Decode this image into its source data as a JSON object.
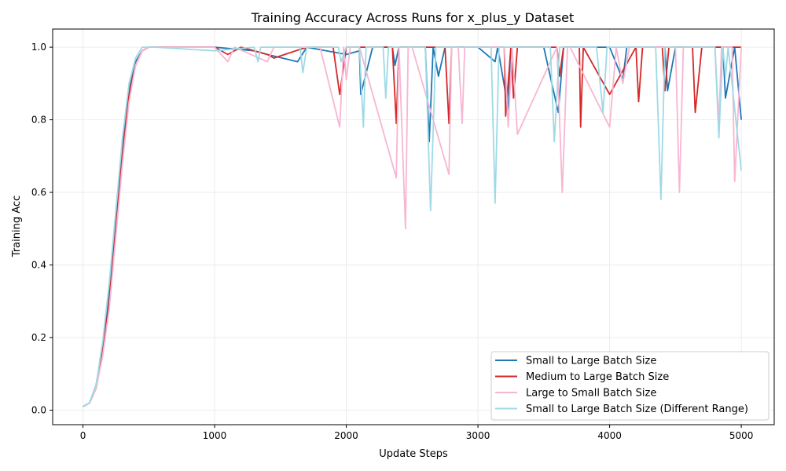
{
  "chart_data": {
    "type": "line",
    "title": "Training Accuracy Across Runs for x_plus_y Dataset",
    "xlabel": "Update Steps",
    "ylabel": "Training Acc",
    "xlim": [
      -230,
      5250
    ],
    "ylim": [
      -0.04,
      1.05
    ],
    "xticks": [
      0,
      1000,
      2000,
      3000,
      4000,
      5000
    ],
    "yticks": [
      0.0,
      0.2,
      0.4,
      0.6,
      0.8,
      1.0
    ],
    "grid": true,
    "legend_position": "bottom-right",
    "series": [
      {
        "name": "Small to Large Batch Size",
        "color": "#1f77b4",
        "x": [
          0,
          50,
          100,
          150,
          200,
          250,
          300,
          350,
          400,
          450,
          500,
          550,
          1000,
          1300,
          1400,
          1630,
          1700,
          2000,
          2100,
          2110,
          2200,
          2350,
          2370,
          2400,
          2600,
          2630,
          2660,
          2700,
          2750,
          3000,
          3130,
          3150,
          3230,
          3250,
          3500,
          3610,
          3650,
          3700,
          4000,
          4100,
          4130,
          4200,
          4420,
          4440,
          4500,
          4860,
          4880,
          4950,
          5000
        ],
        "y": [
          0.01,
          0.02,
          0.07,
          0.18,
          0.33,
          0.52,
          0.72,
          0.88,
          0.96,
          0.99,
          1.0,
          1.0,
          1.0,
          0.99,
          0.98,
          0.96,
          1.0,
          0.98,
          0.99,
          0.87,
          1.0,
          1.0,
          0.95,
          1.0,
          1.0,
          0.74,
          1.0,
          0.92,
          1.0,
          1.0,
          0.96,
          1.0,
          0.83,
          1.0,
          1.0,
          0.82,
          1.0,
          1.0,
          1.0,
          0.91,
          1.0,
          1.0,
          1.0,
          0.88,
          1.0,
          1.0,
          0.86,
          1.0,
          0.8
        ]
      },
      {
        "name": "Medium to Large Batch Size",
        "color": "#d62728",
        "x": [
          0,
          50,
          100,
          150,
          200,
          250,
          300,
          350,
          400,
          450,
          500,
          550,
          1000,
          1100,
          1200,
          1400,
          1450,
          1700,
          1900,
          1950,
          2000,
          2350,
          2380,
          2400,
          2750,
          2780,
          2800,
          3200,
          3210,
          3250,
          3270,
          3300,
          3600,
          3620,
          3650,
          3770,
          3780,
          3800,
          4000,
          4200,
          4220,
          4250,
          4400,
          4420,
          4450,
          4630,
          4650,
          4700,
          5000
        ],
        "y": [
          0.01,
          0.02,
          0.06,
          0.16,
          0.3,
          0.5,
          0.7,
          0.87,
          0.95,
          0.99,
          1.0,
          1.0,
          1.0,
          0.98,
          1.0,
          0.98,
          0.97,
          1.0,
          1.0,
          0.87,
          1.0,
          1.0,
          0.79,
          1.0,
          1.0,
          0.79,
          1.0,
          1.0,
          0.81,
          1.0,
          0.86,
          1.0,
          1.0,
          0.92,
          1.0,
          1.0,
          0.78,
          1.0,
          0.87,
          1.0,
          0.85,
          1.0,
          1.0,
          0.88,
          1.0,
          1.0,
          0.82,
          1.0,
          1.0
        ]
      },
      {
        "name": "Large to Small Batch Size",
        "color": "#f7b6d2",
        "x": [
          0,
          50,
          100,
          150,
          200,
          250,
          300,
          350,
          400,
          450,
          500,
          550,
          1000,
          1100,
          1150,
          1400,
          1450,
          1800,
          1950,
          1980,
          2000,
          2030,
          2100,
          2380,
          2400,
          2450,
          2470,
          2500,
          2780,
          2800,
          2850,
          2880,
          2900,
          3200,
          3230,
          3260,
          3300,
          3600,
          3640,
          3680,
          3700,
          4000,
          4050,
          4100,
          4150,
          4500,
          4530,
          4560,
          4800,
          4830,
          4850,
          4930,
          4950,
          5000
        ],
        "y": [
          0.01,
          0.02,
          0.06,
          0.15,
          0.28,
          0.48,
          0.68,
          0.85,
          0.95,
          0.99,
          1.0,
          1.0,
          1.0,
          0.96,
          1.0,
          0.96,
          1.0,
          1.0,
          0.78,
          1.0,
          0.91,
          1.0,
          1.0,
          0.64,
          1.0,
          0.5,
          1.0,
          1.0,
          0.65,
          1.0,
          1.0,
          0.79,
          1.0,
          1.0,
          0.78,
          1.0,
          0.76,
          1.0,
          0.6,
          1.0,
          1.0,
          0.78,
          1.0,
          0.9,
          1.0,
          1.0,
          0.6,
          1.0,
          1.0,
          0.79,
          1.0,
          1.0,
          0.63,
          1.0
        ]
      },
      {
        "name": "Small to Large Batch Size (Different Range)",
        "color": "#9edae5",
        "x": [
          0,
          50,
          100,
          150,
          200,
          250,
          300,
          350,
          400,
          450,
          500,
          550,
          1000,
          1300,
          1330,
          1350,
          1650,
          1670,
          1700,
          1940,
          1960,
          2000,
          2100,
          2130,
          2150,
          2280,
          2300,
          2320,
          2600,
          2640,
          2680,
          3000,
          3100,
          3130,
          3160,
          3550,
          3580,
          3620,
          3900,
          3950,
          3980,
          4000,
          4350,
          4390,
          4420,
          4800,
          4830,
          4860,
          4880,
          4900,
          5000
        ],
        "y": [
          0.01,
          0.02,
          0.07,
          0.19,
          0.35,
          0.55,
          0.75,
          0.9,
          0.97,
          1.0,
          1.0,
          1.0,
          0.99,
          1.0,
          0.96,
          1.0,
          1.0,
          0.93,
          1.0,
          1.0,
          0.96,
          1.0,
          1.0,
          0.78,
          1.0,
          1.0,
          0.86,
          1.0,
          1.0,
          0.55,
          1.0,
          1.0,
          1.0,
          0.57,
          1.0,
          1.0,
          0.74,
          1.0,
          1.0,
          0.82,
          1.0,
          1.0,
          1.0,
          0.58,
          1.0,
          1.0,
          0.75,
          1.0,
          0.92,
          1.0,
          0.66
        ]
      }
    ]
  }
}
